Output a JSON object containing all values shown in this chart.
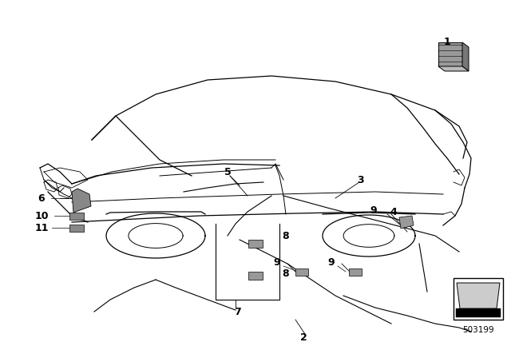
{
  "bg_color": "#ffffff",
  "fig_width": 6.4,
  "fig_height": 4.48,
  "dpi": 100,
  "part_number": "503199",
  "car_color": "#000000",
  "component_color": "#888888",
  "component_color_dark": "#666666"
}
